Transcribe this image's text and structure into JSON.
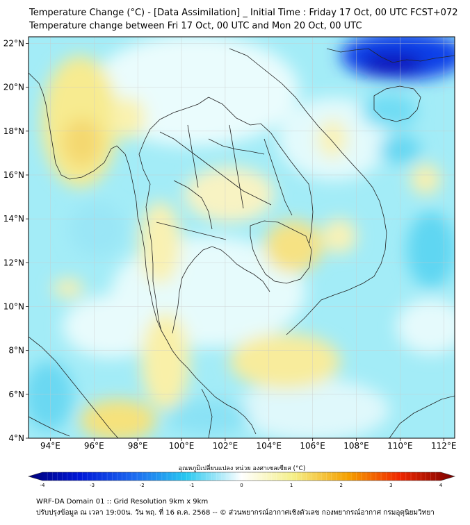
{
  "header": {
    "title_line1": "Temperature Change (°C) - [Data Assimilation] _ Initial Time : Friday 17 Oct, 00 UTC FCST+072",
    "title_line2": "Temperature change between Fri 17 Oct, 00 UTC and Mon 20 Oct, 00 UTC"
  },
  "map": {
    "lat_labels": [
      "22°N",
      "20°N",
      "18°N",
      "16°N",
      "14°N",
      "12°N",
      "10°N",
      "8°N",
      "6°N",
      "4°N"
    ],
    "lat_values": [
      22,
      20,
      18,
      16,
      14,
      12,
      10,
      8,
      6,
      4
    ],
    "lon_labels": [
      "94°E",
      "96°E",
      "98°E",
      "100°E",
      "102°E",
      "104°E",
      "106°E",
      "108°E",
      "110°E",
      "112°E"
    ],
    "lon_values": [
      94,
      96,
      98,
      100,
      102,
      104,
      106,
      108,
      110,
      112
    ],
    "extent": {
      "lon_min": 93,
      "lon_max": 112.5,
      "lat_min": 4,
      "lat_max": 22.3
    }
  },
  "colorbar": {
    "label": "อุณหภูมิเปลี่ยนแปลง หน่วย องศาเซลเซียส (°C)",
    "tick_labels": [
      "-4",
      "-3",
      "-2",
      "-1",
      "0",
      "1",
      "2",
      "3",
      "4"
    ],
    "tick_values": [
      -4,
      -3,
      -2,
      -1,
      0,
      1,
      2,
      3,
      4
    ],
    "colors": [
      "#00007a",
      "#0018d8",
      "#1d6cf0",
      "#27c8f0",
      "#ffffff",
      "#f5f08a",
      "#f5a000",
      "#f02800",
      "#7a0000"
    ]
  },
  "footer": {
    "line1": "WRF-DA Domain 01 :: Grid Resolution 9km x 9km",
    "line2": "ปรับปรุงข้อมูล ณ เวลา 19:00น. วัน พฤ. ที่ 16 ต.ค. 2568 -- © ส่วนพยากรณ์อากาศเชิงตัวเลข กองพยากรณ์อากาศ กรมอุตุนิยมวิทยา"
  }
}
